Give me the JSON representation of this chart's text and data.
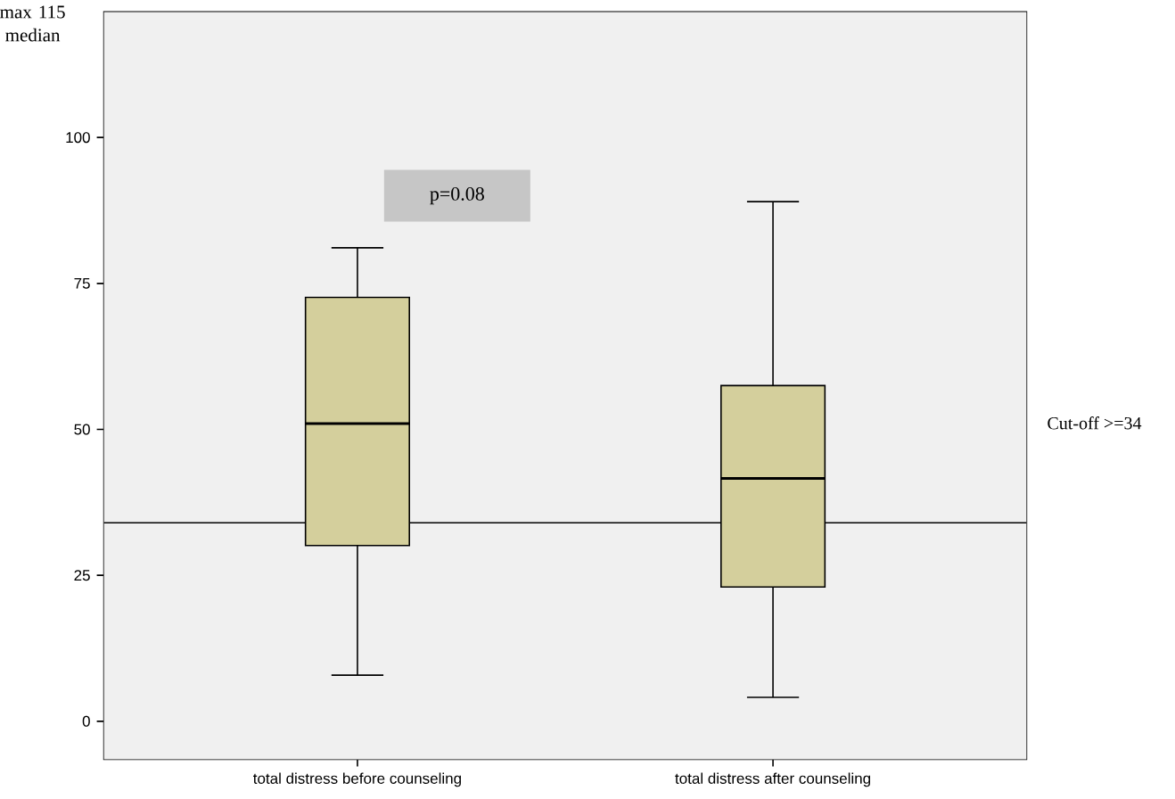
{
  "chart_data": {
    "type": "box",
    "categories": [
      "total distress before counseling",
      "total distress after counseling"
    ],
    "boxes": [
      {
        "low": 7.9,
        "q1": 30.1,
        "median": 51.0,
        "q3": 72.6,
        "high": 81.1
      },
      {
        "low": 4.1,
        "q1": 23.0,
        "median": 41.6,
        "q3": 57.5,
        "high": 89.0
      }
    ],
    "color": "#d4cf9c",
    "ylim": [
      -6.5,
      121.5
    ],
    "yticks": [
      0,
      25,
      50,
      75,
      100
    ],
    "ref_lines": [
      {
        "axis": "y",
        "value": 34,
        "label": "Cut-off >=34",
        "color": "#000000"
      }
    ],
    "annotations": [
      "max 115 median",
      "p=0.08"
    ]
  }
}
